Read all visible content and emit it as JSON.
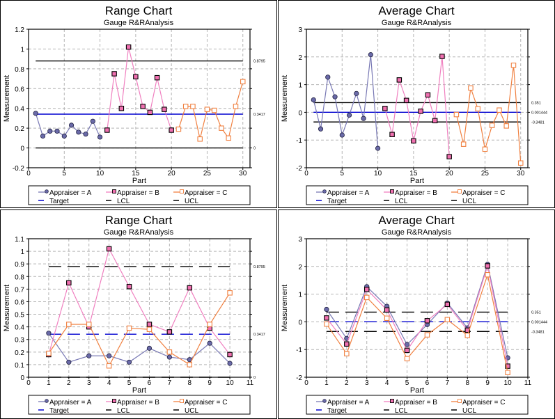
{
  "colors": {
    "appraiser_a_line": "#7878b4",
    "appraiser_a_marker": "#6a6aa8",
    "appraiser_b_line": "#f080c0",
    "appraiser_b_marker": "#f070b0",
    "appraiser_c_line": "#f08040",
    "target": "#0000d0",
    "limits": "#000000",
    "grid": "#b4b4b4"
  },
  "legend": {
    "items": [
      "Appraiser = A",
      "Appraiser = B",
      "Appraiser = C",
      "Target",
      "LCL",
      "UCL"
    ]
  },
  "chart_data": [
    {
      "id": "range-by-run",
      "type": "line",
      "title": "Range Chart",
      "subtitle": "Gauge R&RAnalysis",
      "xlabel": "Part",
      "ylabel": "Measurement",
      "xlim": [
        0,
        31
      ],
      "ylim": [
        -0.2,
        1.2
      ],
      "xticks": [
        0,
        5,
        10,
        15,
        20,
        25,
        30
      ],
      "yticks": [
        -0.2,
        0,
        0.2,
        0.4,
        0.6,
        0.8,
        1,
        1.2
      ],
      "ytick_labels": [
        "-0.2",
        "0",
        "0.2",
        "0.4",
        "0.6",
        "0.8",
        "1",
        "1.2"
      ],
      "grid": true,
      "legend_position": "bottom",
      "layout": "sequential",
      "series": [
        {
          "name": "Appraiser = A",
          "x": [
            1,
            2,
            3,
            4,
            5,
            6,
            7,
            8,
            9,
            10
          ],
          "values": [
            0.35,
            0.12,
            0.17,
            0.17,
            0.12,
            0.23,
            0.16,
            0.14,
            0.27,
            0.11
          ]
        },
        {
          "name": "Appraiser = B",
          "x": [
            11,
            12,
            13,
            14,
            15,
            16,
            17,
            18,
            19,
            20
          ],
          "values": [
            0.18,
            0.75,
            0.4,
            1.02,
            0.72,
            0.42,
            0.36,
            0.71,
            0.39,
            0.18
          ]
        },
        {
          "name": "Appraiser = C",
          "x": [
            21,
            22,
            23,
            24,
            25,
            26,
            27,
            28,
            29,
            30
          ],
          "values": [
            0.19,
            0.42,
            0.42,
            0.09,
            0.39,
            0.38,
            0.2,
            0.1,
            0.42,
            0.67
          ]
        }
      ],
      "reference_lines": {
        "target": {
          "value": 0.3417,
          "x_range": [
            1,
            30
          ],
          "label": "0.3417"
        },
        "ucl": {
          "value": 0.8795,
          "x_range": [
            1,
            30
          ],
          "label": "0.8795"
        },
        "lcl": {
          "value": 0,
          "x_range": [
            1,
            30
          ],
          "label": "0"
        }
      },
      "dashed_limits": false
    },
    {
      "id": "average-by-run",
      "type": "line",
      "title": "Average Chart",
      "subtitle": "Gauge R&RAnalysis",
      "xlabel": "Part",
      "ylabel": "Measurement",
      "xlim": [
        0,
        31
      ],
      "ylim": [
        -2,
        3
      ],
      "xticks": [
        0,
        5,
        10,
        15,
        20,
        25,
        30
      ],
      "yticks": [
        -2,
        -1,
        0,
        1,
        2,
        3
      ],
      "ytick_labels": [
        "-2",
        "-1",
        "0",
        "1",
        "2",
        "3"
      ],
      "grid": true,
      "legend_position": "bottom",
      "layout": "sequential",
      "series": [
        {
          "name": "Appraiser = A",
          "x": [
            1,
            2,
            3,
            4,
            5,
            6,
            7,
            8,
            9,
            10
          ],
          "values": [
            0.45,
            -0.6,
            1.27,
            0.56,
            -0.82,
            -0.1,
            0.68,
            -0.22,
            2.08,
            -1.3
          ]
        },
        {
          "name": "Appraiser = B",
          "x": [
            11,
            12,
            13,
            14,
            15,
            16,
            17,
            18,
            19,
            20
          ],
          "values": [
            0.14,
            -0.8,
            1.17,
            0.43,
            -1.03,
            0.04,
            0.63,
            -0.3,
            2.02,
            -1.6
          ]
        },
        {
          "name": "Appraiser = C",
          "x": [
            21,
            22,
            23,
            24,
            25,
            26,
            27,
            28,
            29,
            30
          ],
          "values": [
            -0.08,
            -1.15,
            0.88,
            0.13,
            -1.33,
            -0.47,
            0.08,
            -0.49,
            1.7,
            -1.83
          ]
        }
      ],
      "reference_lines": {
        "target": {
          "value": 0.001444,
          "x_range": [
            1,
            30
          ],
          "label": "0.001444"
        },
        "ucl": {
          "value": 0.351,
          "x_range": [
            1,
            30
          ],
          "label": "0.351"
        },
        "lcl": {
          "value": -0.3481,
          "x_range": [
            1,
            30
          ],
          "label": "-0.3481"
        }
      },
      "dashed_limits": false
    },
    {
      "id": "range-by-part",
      "type": "line",
      "title": "Range Chart",
      "subtitle": "Gauge R&RAnalysis",
      "xlabel": "Part",
      "ylabel": "Measurement",
      "xlim": [
        0,
        11
      ],
      "ylim": [
        0,
        1.1
      ],
      "xticks": [
        0,
        1,
        2,
        3,
        4,
        5,
        6,
        7,
        8,
        9,
        10,
        11
      ],
      "yticks": [
        0,
        0.1,
        0.2,
        0.3,
        0.4,
        0.5,
        0.6,
        0.7,
        0.8,
        0.9,
        1,
        1.1
      ],
      "ytick_labels": [
        "0",
        "0.1",
        "0.2",
        "0.3",
        "0.4",
        "0.5",
        "0.6",
        "0.7",
        "0.8",
        "0.9",
        "1",
        "1.1"
      ],
      "grid": true,
      "legend_position": "bottom",
      "layout": "overlaid",
      "series": [
        {
          "name": "Appraiser = A",
          "x": [
            1,
            2,
            3,
            4,
            5,
            6,
            7,
            8,
            9,
            10
          ],
          "values": [
            0.35,
            0.12,
            0.17,
            0.17,
            0.12,
            0.23,
            0.16,
            0.14,
            0.27,
            0.11
          ]
        },
        {
          "name": "Appraiser = B",
          "x": [
            1,
            2,
            3,
            4,
            5,
            6,
            7,
            8,
            9,
            10
          ],
          "values": [
            0.18,
            0.75,
            0.4,
            1.02,
            0.72,
            0.42,
            0.36,
            0.71,
            0.39,
            0.18
          ]
        },
        {
          "name": "Appraiser = C",
          "x": [
            1,
            2,
            3,
            4,
            5,
            6,
            7,
            8,
            9,
            10
          ],
          "values": [
            0.19,
            0.42,
            0.42,
            0.09,
            0.39,
            0.38,
            0.2,
            0.1,
            0.42,
            0.67
          ]
        }
      ],
      "reference_lines": {
        "target": {
          "value": 0.3417,
          "x_range": [
            1,
            10
          ],
          "label": "0.3417"
        },
        "ucl": {
          "value": 0.8795,
          "x_range": [
            1,
            10
          ],
          "label": "0.8795"
        },
        "lcl": {
          "value": 0,
          "x_range": [
            1,
            10
          ],
          "label": "0"
        }
      },
      "dashed_limits": true
    },
    {
      "id": "average-by-part",
      "type": "line",
      "title": "Average Chart",
      "subtitle": "Gauge R&RAnalysis",
      "xlabel": "Part",
      "ylabel": "Measurement",
      "xlim": [
        0,
        11
      ],
      "ylim": [
        -2,
        3
      ],
      "xticks": [
        0,
        1,
        2,
        3,
        4,
        5,
        6,
        7,
        8,
        9,
        10,
        11
      ],
      "yticks": [
        -2,
        -1,
        0,
        1,
        2,
        3
      ],
      "ytick_labels": [
        "-2",
        "-1",
        "0",
        "1",
        "2",
        "3"
      ],
      "grid": true,
      "legend_position": "bottom",
      "layout": "overlaid",
      "series": [
        {
          "name": "Appraiser = A",
          "x": [
            1,
            2,
            3,
            4,
            5,
            6,
            7,
            8,
            9,
            10
          ],
          "values": [
            0.45,
            -0.6,
            1.27,
            0.56,
            -0.82,
            -0.1,
            0.68,
            -0.22,
            2.08,
            -1.3
          ]
        },
        {
          "name": "Appraiser = B",
          "x": [
            1,
            2,
            3,
            4,
            5,
            6,
            7,
            8,
            9,
            10
          ],
          "values": [
            0.14,
            -0.8,
            1.17,
            0.43,
            -1.03,
            0.04,
            0.63,
            -0.3,
            2.02,
            -1.6
          ]
        },
        {
          "name": "Appraiser = C",
          "x": [
            1,
            2,
            3,
            4,
            5,
            6,
            7,
            8,
            9,
            10
          ],
          "values": [
            -0.08,
            -1.15,
            0.88,
            0.13,
            -1.33,
            -0.47,
            0.08,
            -0.49,
            1.7,
            -1.83
          ]
        }
      ],
      "reference_lines": {
        "target": {
          "value": 0.001444,
          "x_range": [
            1,
            10
          ],
          "label": "0.001444"
        },
        "ucl": {
          "value": 0.351,
          "x_range": [
            1,
            10
          ],
          "label": "0.351"
        },
        "lcl": {
          "value": -0.3481,
          "x_range": [
            1,
            10
          ],
          "label": "-0.3481"
        }
      },
      "dashed_limits": true
    }
  ]
}
